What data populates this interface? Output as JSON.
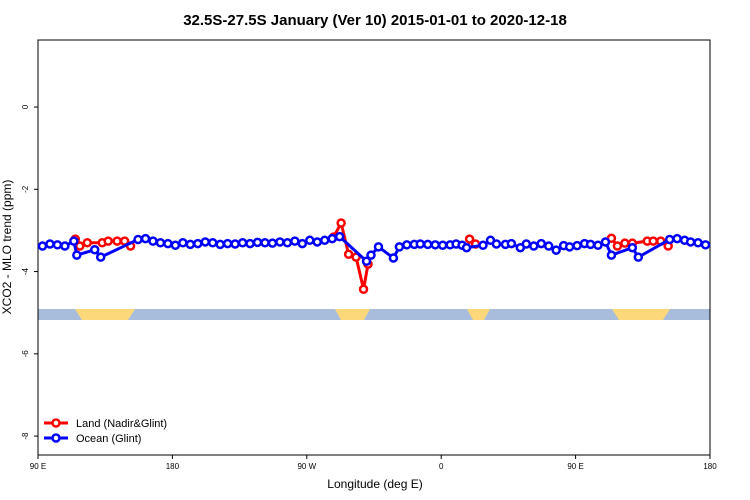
{
  "chart_data": {
    "type": "line",
    "title": "32.5S-27.5S January (Ver 10)   2015-01-01 to 2020-12-18",
    "xlabel": "Longitude (deg E)",
    "ylabel": "XCO2 - MLO trend (ppm)",
    "xlim": [
      90,
      540
    ],
    "ylim": [
      -8.46,
      1.63
    ],
    "xticks": [
      {
        "value": 90,
        "label": "90 E"
      },
      180,
      {
        "value": 270,
        "label": "90 W"
      },
      {
        "value": 360,
        "label": "0"
      },
      {
        "value": 450,
        "label": "90 E"
      },
      {
        "value": 540,
        "label": "180"
      }
    ],
    "yticks": [
      0,
      -2,
      -4,
      -6,
      -8
    ],
    "legend": "bottom-left",
    "series": [
      {
        "name": "Land (Nadir&Glint)",
        "color": "#ff0000",
        "x": [
          115,
          118,
          123,
          133,
          137,
          143,
          148,
          152,
          null,
          288,
          293,
          298,
          303,
          308,
          311,
          null,
          379,
          383,
          null,
          474,
          478,
          483,
          488,
          498,
          502,
          507,
          512
        ],
        "values": [
          -3.21,
          -3.38,
          -3.3,
          -3.3,
          -3.26,
          -3.26,
          -3.26,
          -3.38,
          null,
          -3.16,
          -2.82,
          -3.58,
          -3.65,
          -4.43,
          -3.82,
          null,
          -3.21,
          -3.33,
          null,
          -3.19,
          -3.38,
          -3.31,
          -3.31,
          -3.26,
          -3.26,
          -3.26,
          -3.38
        ]
      },
      {
        "name": "Ocean (Glint)",
        "color": "#0000ff",
        "x": [
          93,
          98,
          103,
          108,
          114,
          116,
          128,
          132,
          157,
          162,
          167,
          172,
          177,
          182,
          187,
          192,
          197,
          202,
          207,
          212,
          217,
          222,
          227,
          232,
          237,
          242,
          247,
          252,
          257,
          262,
          267,
          272,
          277,
          282,
          287,
          292,
          310,
          313,
          318,
          328,
          332,
          337,
          342,
          346,
          351,
          356,
          361,
          366,
          370,
          374,
          377,
          388,
          393,
          397,
          403,
          407,
          413,
          417,
          422,
          427,
          432,
          437,
          442,
          446,
          451,
          456,
          460,
          465,
          470,
          474,
          488,
          492,
          513,
          518,
          523,
          527,
          532,
          537
        ],
        "values": [
          -3.38,
          -3.33,
          -3.35,
          -3.38,
          -3.26,
          -3.6,
          -3.47,
          -3.65,
          -3.22,
          -3.2,
          -3.26,
          -3.3,
          -3.32,
          -3.36,
          -3.3,
          -3.34,
          -3.32,
          -3.28,
          -3.3,
          -3.34,
          -3.32,
          -3.33,
          -3.3,
          -3.32,
          -3.29,
          -3.3,
          -3.31,
          -3.28,
          -3.3,
          -3.26,
          -3.32,
          -3.24,
          -3.28,
          -3.24,
          -3.2,
          -3.15,
          -3.75,
          -3.6,
          -3.4,
          -3.67,
          -3.4,
          -3.35,
          -3.34,
          -3.33,
          -3.34,
          -3.35,
          -3.36,
          -3.35,
          -3.33,
          -3.36,
          -3.42,
          -3.36,
          -3.24,
          -3.33,
          -3.34,
          -3.32,
          -3.42,
          -3.33,
          -3.38,
          -3.32,
          -3.38,
          -3.48,
          -3.37,
          -3.4,
          -3.37,
          -3.32,
          -3.34,
          -3.36,
          -3.28,
          -3.6,
          -3.42,
          -3.65,
          -3.22,
          -3.2,
          -3.24,
          -3.28,
          -3.3,
          -3.35
        ]
      }
    ]
  }
}
